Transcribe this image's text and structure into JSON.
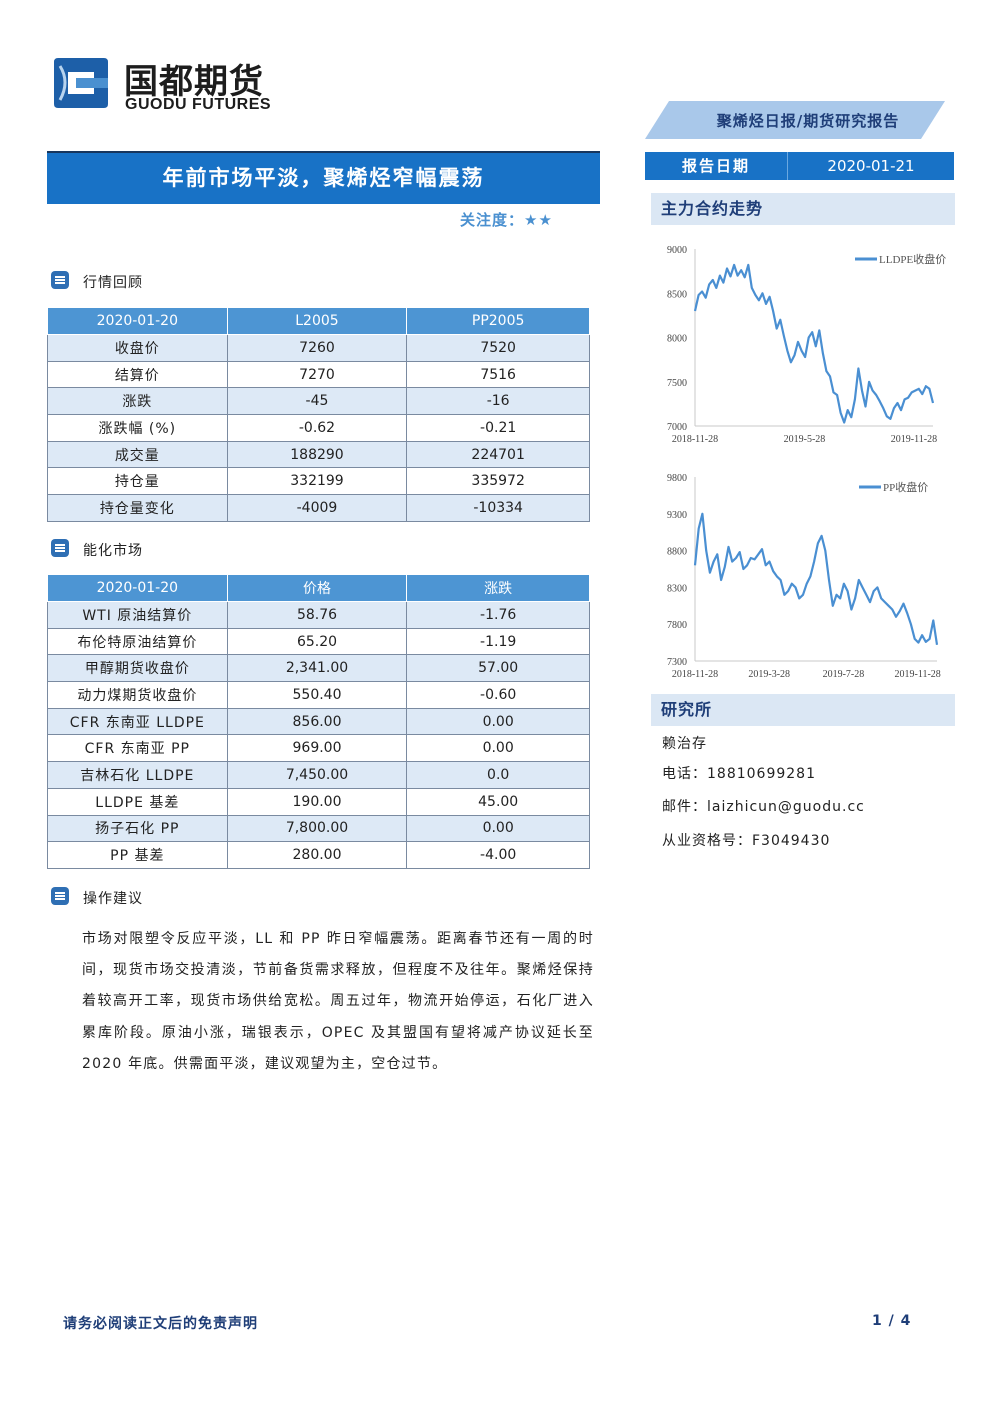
{
  "header": {
    "logo_cn": "国都期货",
    "logo_en": "GUODU FUTURES",
    "report_type": "聚烯烃日报/期货研究报告"
  },
  "title": "年前市场平淡，聚烯烃窄幅震荡",
  "attention": "关注度：★★",
  "report_date": {
    "label": "报告日期",
    "value": "2020-01-21"
  },
  "sections": {
    "market_review": "行情回顾",
    "energy_market": "能化市场",
    "operation_advice": "操作建议"
  },
  "market_table": {
    "headers": [
      "2020-01-20",
      "L2005",
      "PP2005"
    ],
    "rows": [
      [
        "收盘价",
        "7260",
        "7520"
      ],
      [
        "结算价",
        "7270",
        "7516"
      ],
      [
        "涨跌",
        "-45",
        "-16"
      ],
      [
        "涨跌幅 (%)",
        "-0.62",
        "-0.21"
      ],
      [
        "成交量",
        "188290",
        "224701"
      ],
      [
        "持仓量",
        "332199",
        "335972"
      ],
      [
        "持仓量变化",
        "-4009",
        "-10334"
      ]
    ]
  },
  "energy_table": {
    "headers": [
      "2020-01-20",
      "价格",
      "涨跌"
    ],
    "rows": [
      [
        "WTI 原油结算价",
        "58.76",
        "-1.76"
      ],
      [
        "布伦特原油结算价",
        "65.20",
        "-1.19"
      ],
      [
        "甲醇期货收盘价",
        "2,341.00",
        "57.00"
      ],
      [
        "动力煤期货收盘价",
        "550.40",
        "-0.60"
      ],
      [
        "CFR 东南亚 LLDPE",
        "856.00",
        "0.00"
      ],
      [
        "CFR 东南亚 PP",
        "969.00",
        "0.00"
      ],
      [
        "吉林石化 LLDPE",
        "7,450.00",
        "0.0"
      ],
      [
        "LLDPE 基差",
        "190.00",
        "45.00"
      ],
      [
        "扬子石化 PP",
        "7,800.00",
        "0.00"
      ],
      [
        "PP 基差",
        "280.00",
        "-4.00"
      ]
    ]
  },
  "advice_text": "市场对限塑令反应平淡，LL 和 PP 昨日窄幅震荡。距离春节还有一周的时间，现货市场交投清淡，节前备货需求释放，但程度不及往年。聚烯烃保持着较高开工率，现货市场供给宽松。周五过年，物流开始停运，石化厂进入累库阶段。原油小涨，瑞银表示，OPEC 及其盟国有望将减产协议延长至 2020 年底。供需面平淡，建议观望为主，空仓过节。",
  "side": {
    "trend_title": "主力合约走势",
    "research_title": "研究所",
    "analyst": "赖治存",
    "phone": "电话：18810699281",
    "email": "邮件：laizhicun@guodu.cc",
    "license": "从业资格号：F3049430"
  },
  "chart_data": [
    {
      "type": "line",
      "series": [
        {
          "name": "LLDPE收盘价",
          "values": [
            8300,
            8480,
            8520,
            8450,
            8600,
            8650,
            8560,
            8700,
            8620,
            8780,
            8690,
            8820,
            8700,
            8760,
            8680,
            8820,
            8560,
            8480,
            8420,
            8500,
            8380,
            8460,
            8300,
            8100,
            8200,
            8020,
            7850,
            7720,
            7800,
            7950,
            7850,
            7780,
            8000,
            8060,
            7900,
            8080,
            7820,
            7620,
            7560,
            7380,
            7350,
            7150,
            7040,
            7180,
            7100,
            7300,
            7650,
            7400,
            7220,
            7500,
            7400,
            7350,
            7280,
            7200,
            7110,
            7080,
            7200,
            7260,
            7180,
            7300,
            7320,
            7380,
            7400,
            7420,
            7360,
            7450,
            7420,
            7260
          ]
        }
      ],
      "x_ticks": [
        "2018-11-28",
        "2019-5-28",
        "2019-11-28"
      ],
      "y_ticks": [
        7000,
        7500,
        8000,
        8500,
        9000
      ],
      "ylim": [
        7000,
        9000
      ],
      "legend": "top-right",
      "color": "#4a8fd2"
    },
    {
      "type": "line",
      "series": [
        {
          "name": "PP收盘价",
          "values": [
            8600,
            9100,
            9300,
            8800,
            8500,
            8650,
            8750,
            8400,
            8580,
            8850,
            8650,
            8700,
            8780,
            8550,
            8600,
            8700,
            8680,
            8750,
            8820,
            8600,
            8650,
            8520,
            8450,
            8400,
            8200,
            8250,
            8350,
            8300,
            8150,
            8200,
            8350,
            8450,
            8650,
            8900,
            9000,
            8800,
            8400,
            8050,
            8200,
            8150,
            8350,
            8250,
            8000,
            8150,
            8400,
            8300,
            8200,
            8100,
            8250,
            8300,
            8150,
            8100,
            8050,
            8000,
            7900,
            7980,
            8080,
            7950,
            7800,
            7600,
            7550,
            7650,
            7560,
            7600,
            7850,
            7520
          ]
        }
      ],
      "x_ticks": [
        "2018-11-28",
        "2019-3-28",
        "2019-7-28",
        "2019-11-28"
      ],
      "y_ticks": [
        7300,
        7800,
        8300,
        8800,
        9300,
        9800
      ],
      "ylim": [
        7300,
        9800
      ],
      "legend": "top-right",
      "color": "#4a8fd2"
    }
  ],
  "footer": {
    "disclaimer": "请务必阅读正文后的免责声明",
    "page": "1 / 4"
  },
  "colors": {
    "primary_blue": "#1872c6",
    "table_header": "#4d95d3",
    "row_stripe": "#dde9f6",
    "navy": "#1f3e78"
  }
}
